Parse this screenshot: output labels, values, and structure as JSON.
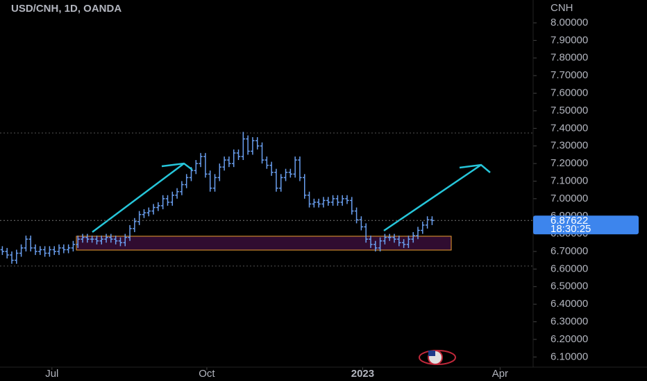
{
  "chart_data": {
    "type": "ohlc",
    "title": "USD/CNH, 1D, OANDA",
    "y_axis_label": "CNH",
    "color": "#6a9ff0",
    "open": [
      6.71,
      6.7,
      6.68,
      6.65,
      6.69,
      6.72,
      6.77,
      6.72,
      6.7,
      6.71,
      6.69,
      6.71,
      6.7,
      6.72,
      6.71,
      6.72,
      6.74,
      6.77,
      6.78,
      6.77,
      6.77,
      6.76,
      6.77,
      6.78,
      6.77,
      6.76,
      6.75,
      6.78,
      6.83,
      6.87,
      6.91,
      6.92,
      6.93,
      6.95,
      6.96,
      7.0,
      6.98,
      7.02,
      7.04,
      7.08,
      7.12,
      7.16,
      7.2,
      7.24,
      7.14,
      7.06,
      7.12,
      7.18,
      7.22,
      7.2,
      7.26,
      7.24,
      7.34,
      7.27,
      7.33,
      7.3,
      7.22,
      7.19,
      7.15,
      7.06,
      7.12,
      7.15,
      7.14,
      7.22,
      7.12,
      7.02,
      6.97,
      6.98,
      6.97,
      6.99,
      6.98,
      7.0,
      6.98,
      7.0,
      6.99,
      6.93,
      6.88,
      6.84,
      6.77,
      6.74,
      6.72,
      6.76,
      6.78,
      6.78,
      6.77,
      6.75,
      6.74,
      6.77,
      6.79,
      6.82,
      6.85,
      6.88
    ],
    "high": [
      6.73,
      6.72,
      6.7,
      6.71,
      6.74,
      6.79,
      6.79,
      6.74,
      6.73,
      6.73,
      6.73,
      6.73,
      6.74,
      6.74,
      6.74,
      6.76,
      6.79,
      6.8,
      6.8,
      6.79,
      6.79,
      6.79,
      6.8,
      6.8,
      6.79,
      6.78,
      6.8,
      6.85,
      6.89,
      6.93,
      6.94,
      6.95,
      6.97,
      6.98,
      7.02,
      7.02,
      7.04,
      7.06,
      7.1,
      7.14,
      7.18,
      7.22,
      7.26,
      7.26,
      7.16,
      7.14,
      7.2,
      7.24,
      7.24,
      7.28,
      7.28,
      7.38,
      7.36,
      7.35,
      7.35,
      7.32,
      7.24,
      7.21,
      7.17,
      7.14,
      7.17,
      7.17,
      7.24,
      7.24,
      7.14,
      7.04,
      7.0,
      7.0,
      7.01,
      7.01,
      7.02,
      7.02,
      7.02,
      7.02,
      7.01,
      6.95,
      6.9,
      6.86,
      6.79,
      6.76,
      6.78,
      6.8,
      6.8,
      6.8,
      6.79,
      6.77,
      6.79,
      6.81,
      6.84,
      6.87,
      6.9,
      6.9
    ],
    "low": [
      6.68,
      6.66,
      6.63,
      6.63,
      6.67,
      6.7,
      6.7,
      6.68,
      6.68,
      6.67,
      6.67,
      6.68,
      6.68,
      6.69,
      6.69,
      6.7,
      6.72,
      6.75,
      6.75,
      6.75,
      6.74,
      6.74,
      6.75,
      6.75,
      6.74,
      6.73,
      6.73,
      6.76,
      6.81,
      6.85,
      6.89,
      6.9,
      6.91,
      6.93,
      6.94,
      6.96,
      6.96,
      7.0,
      7.02,
      7.06,
      7.1,
      7.14,
      7.18,
      7.12,
      7.04,
      7.04,
      7.1,
      7.16,
      7.18,
      7.18,
      7.22,
      7.22,
      7.25,
      7.25,
      7.28,
      7.2,
      7.17,
      7.13,
      7.04,
      7.04,
      7.1,
      7.12,
      7.12,
      7.1,
      7.0,
      6.95,
      6.95,
      6.95,
      6.95,
      6.96,
      6.96,
      6.96,
      6.96,
      6.97,
      6.91,
      6.86,
      6.82,
      6.75,
      6.72,
      6.7,
      6.7,
      6.74,
      6.76,
      6.75,
      6.73,
      6.72,
      6.72,
      6.75,
      6.77,
      6.8,
      6.83,
      6.85
    ],
    "close": [
      6.7,
      6.68,
      6.65,
      6.69,
      6.72,
      6.77,
      6.72,
      6.7,
      6.71,
      6.69,
      6.71,
      6.7,
      6.72,
      6.71,
      6.72,
      6.74,
      6.77,
      6.78,
      6.77,
      6.77,
      6.76,
      6.77,
      6.78,
      6.77,
      6.76,
      6.75,
      6.78,
      6.83,
      6.87,
      6.91,
      6.92,
      6.93,
      6.95,
      6.96,
      7.0,
      6.98,
      7.02,
      7.04,
      7.08,
      7.12,
      7.16,
      7.2,
      7.24,
      7.14,
      7.06,
      7.12,
      7.18,
      7.22,
      7.2,
      7.26,
      7.24,
      7.34,
      7.27,
      7.33,
      7.3,
      7.22,
      7.19,
      7.15,
      7.06,
      7.12,
      7.15,
      7.14,
      7.22,
      7.12,
      7.02,
      6.97,
      6.98,
      6.97,
      6.99,
      6.98,
      7.0,
      6.98,
      7.0,
      6.99,
      6.93,
      6.88,
      6.84,
      6.77,
      6.74,
      6.72,
      6.76,
      6.78,
      6.78,
      6.77,
      6.75,
      6.74,
      6.77,
      6.79,
      6.82,
      6.85,
      6.88,
      6.876
    ],
    "xlim": [
      -0.5,
      112.4
    ],
    "xticks": [
      {
        "value": 10.5,
        "label": "Jul"
      },
      {
        "value": 43.3,
        "label": "Oct"
      },
      {
        "value": 76.3,
        "label": "2023"
      },
      {
        "value": 105.4,
        "label": "Apr"
      }
    ],
    "ylim": [
      6.05,
      8.13
    ],
    "yticks": [
      {
        "value": 6.1,
        "label": "6.10000"
      },
      {
        "value": 6.2,
        "label": "6.20000"
      },
      {
        "value": 6.3,
        "label": "6.30000"
      },
      {
        "value": 6.4,
        "label": "6.40000"
      },
      {
        "value": 6.5,
        "label": "6.50000"
      },
      {
        "value": 6.6,
        "label": "6.60000"
      },
      {
        "value": 6.7,
        "label": "6.70000"
      },
      {
        "value": 6.8,
        "label": "6.80000"
      },
      {
        "value": 6.9,
        "label": "6.90000"
      },
      {
        "value": 7.0,
        "label": "7.00000"
      },
      {
        "value": 7.1,
        "label": "7.10000"
      },
      {
        "value": 7.2,
        "label": "7.20000"
      },
      {
        "value": 7.3,
        "label": "7.30000"
      },
      {
        "value": 7.4,
        "label": "7.40000"
      },
      {
        "value": 7.5,
        "label": "7.50000"
      },
      {
        "value": 7.6,
        "label": "7.60000"
      },
      {
        "value": 7.7,
        "label": "7.70000"
      },
      {
        "value": 7.8,
        "label": "7.80000"
      },
      {
        "value": 7.9,
        "label": "7.90000"
      },
      {
        "value": 8.0,
        "label": "8.00000"
      }
    ],
    "last_price": 6.87622,
    "countdown": "18:30:25"
  }
}
